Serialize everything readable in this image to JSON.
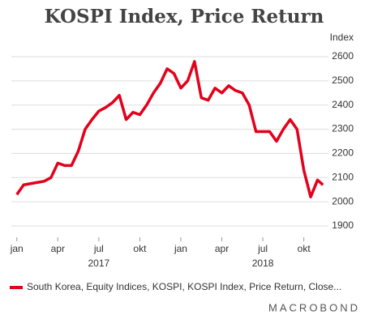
{
  "chart_data": {
    "type": "line",
    "title": "KOSPI Index, Price Return",
    "y_axis_label": "Index",
    "x": [
      0,
      0.5,
      1,
      1.5,
      2,
      2.5,
      3,
      3.5,
      4,
      4.5,
      5,
      5.5,
      6,
      6.5,
      7,
      7.5,
      8,
      8.5,
      9,
      9.5,
      10,
      10.5,
      11,
      11.5,
      12,
      12.5,
      13,
      13.5,
      14,
      14.5,
      15,
      15.5,
      16,
      16.5,
      17,
      17.5,
      18,
      18.5,
      19,
      19.5,
      20,
      20.5,
      21,
      21.5,
      22,
      22.4
    ],
    "series": [
      {
        "name": "South Korea, Equity Indices, KOSPI, KOSPI Index, Price Return, Close...",
        "color": "#e3001b",
        "values": [
          2030,
          2070,
          2075,
          2080,
          2085,
          2100,
          2160,
          2150,
          2150,
          2210,
          2300,
          2340,
          2375,
          2390,
          2410,
          2440,
          2340,
          2370,
          2360,
          2400,
          2450,
          2490,
          2550,
          2530,
          2470,
          2500,
          2580,
          2430,
          2420,
          2470,
          2450,
          2480,
          2460,
          2450,
          2400,
          2290,
          2290,
          2290,
          2250,
          2300,
          2340,
          2300,
          2130,
          2020,
          2090,
          2070
        ]
      }
    ],
    "xlim": [
      -0.4,
      22.8
    ],
    "xticks": [
      {
        "value": 0,
        "label": "jan"
      },
      {
        "value": 3,
        "label": "apr"
      },
      {
        "value": 6,
        "label": "jul"
      },
      {
        "value": 9,
        "label": "okt"
      },
      {
        "value": 12,
        "label": "jan"
      },
      {
        "value": 15,
        "label": "apr"
      },
      {
        "value": 18,
        "label": "jul"
      },
      {
        "value": 21,
        "label": "okt"
      }
    ],
    "year_labels": [
      {
        "value": 6,
        "label": "2017"
      },
      {
        "value": 18,
        "label": "2018"
      }
    ],
    "ylim": [
      1860,
      2640
    ],
    "yticks": [
      1900,
      2000,
      2100,
      2200,
      2300,
      2400,
      2500,
      2600
    ],
    "grid": true,
    "brand": "MACROBOND"
  }
}
